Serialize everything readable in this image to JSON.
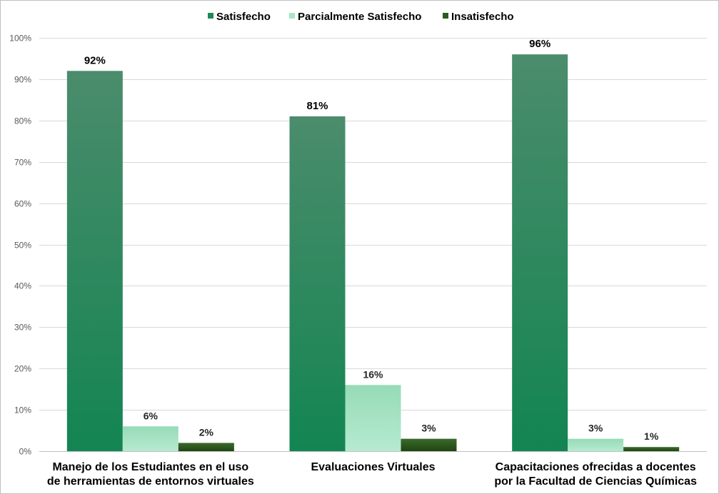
{
  "chart_data": {
    "type": "bar",
    "categories": [
      [
        "Manejo de los Estudiantes en el uso",
        "de herramientas de entornos virtuales"
      ],
      [
        "Evaluaciones Virtuales"
      ],
      [
        "Capacitaciones ofrecidas a docentes",
        "por la Facultad de Ciencias Químicas"
      ]
    ],
    "series": [
      {
        "name": "Satisfecho",
        "values": [
          92,
          81,
          96
        ],
        "labels": [
          "92%",
          "81%",
          "96%"
        ],
        "color": "#1e8a5a"
      },
      {
        "name": "Parcialmente Satisfecho",
        "values": [
          6,
          16,
          3
        ],
        "labels": [
          "6%",
          "16%",
          "3%"
        ],
        "color": "#a8e6c5"
      },
      {
        "name": "Insatisfecho",
        "values": [
          2,
          3,
          1
        ],
        "labels": [
          "2%",
          "3%",
          "1%"
        ],
        "color": "#2d5a1e"
      }
    ],
    "ylim": [
      0,
      100
    ],
    "yticks": [
      "0%",
      "10%",
      "20%",
      "30%",
      "40%",
      "50%",
      "60%",
      "70%",
      "80%",
      "90%",
      "100%"
    ],
    "grid": true,
    "legend_position": "top"
  }
}
